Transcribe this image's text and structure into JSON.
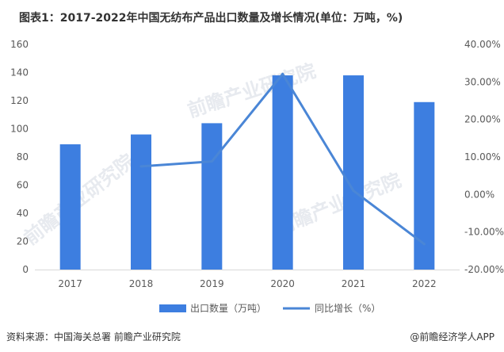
{
  "title": "图表1：2017-2022年中国无纺布产品出口数量及增长情况(单位：万吨，%)",
  "source": "资料来源：中国海关总署 前瞻产业研究院",
  "brand": "@前瞻经济学人APP",
  "watermark": "前瞻产业研究院",
  "colors": {
    "bar": "#3d7ee0",
    "line": "#4a86d6",
    "axis": "#d9d9d9",
    "text": "#595959"
  },
  "chart_data": {
    "type": "bar+line",
    "categories": [
      "2017",
      "2018",
      "2019",
      "2020",
      "2021",
      "2022"
    ],
    "series": [
      {
        "name": "出口数量（万吨）",
        "type": "bar",
        "axis": "left",
        "values": [
          89,
          96,
          104,
          138,
          138,
          119
        ]
      },
      {
        "name": "同比增长（%）",
        "type": "line",
        "axis": "right",
        "values": [
          null,
          7.5,
          8.8,
          32.1,
          1.0,
          -13.2
        ]
      }
    ],
    "left_axis": {
      "ticks": [
        "0",
        "20",
        "40",
        "60",
        "80",
        "100",
        "120",
        "140",
        "160"
      ],
      "ylim": [
        0,
        160
      ]
    },
    "right_axis": {
      "ticks": [
        "-20.00%",
        "-10.00%",
        "0.00%",
        "10.00%",
        "20.00%",
        "30.00%",
        "40.00%"
      ],
      "ylim": [
        -20,
        40
      ]
    },
    "legend_position": "bottom"
  }
}
